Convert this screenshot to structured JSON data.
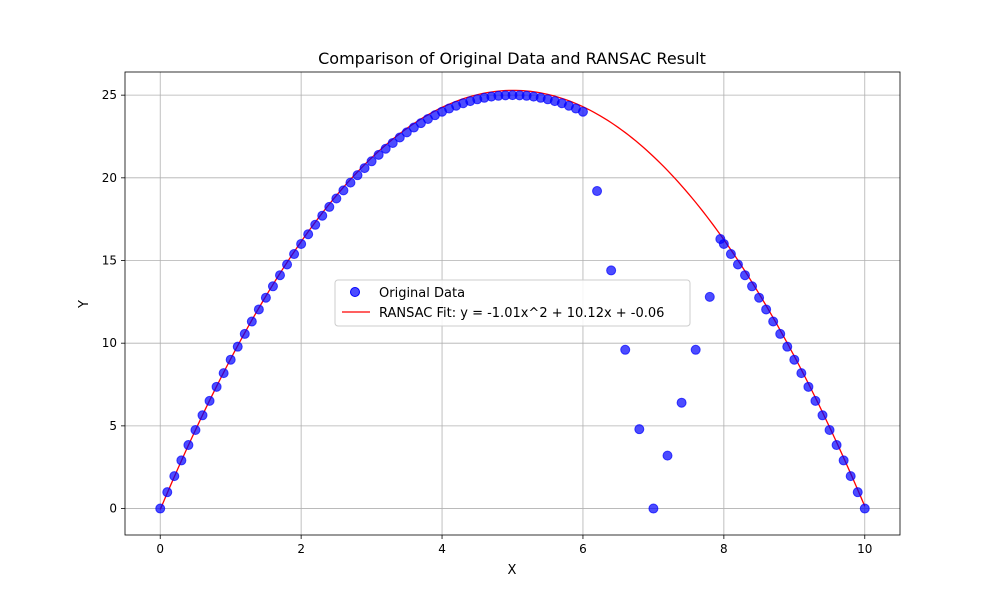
{
  "chart_data": {
    "type": "scatter",
    "title": "Comparison of Original Data and RANSAC Result",
    "xlabel": "X",
    "ylabel": "Y",
    "xlim": [
      -0.5,
      10.5
    ],
    "ylim": [
      -1.6,
      26.4
    ],
    "xticks": [
      0,
      2,
      4,
      6,
      8,
      10
    ],
    "yticks": [
      0,
      5,
      10,
      15,
      20,
      25
    ],
    "grid": true,
    "legend_position": "center",
    "series": [
      {
        "name": "Original Data",
        "kind": "scatter",
        "color": "#0000ff",
        "points": [
          [
            0.0,
            0.0
          ],
          [
            0.1,
            0.99
          ],
          [
            0.2,
            1.96
          ],
          [
            0.3,
            2.91
          ],
          [
            0.4,
            3.84
          ],
          [
            0.5,
            4.75
          ],
          [
            0.6,
            5.64
          ],
          [
            0.7,
            6.51
          ],
          [
            0.8,
            7.36
          ],
          [
            0.9,
            8.19
          ],
          [
            1.0,
            9.0
          ],
          [
            1.1,
            9.79
          ],
          [
            1.2,
            10.56
          ],
          [
            1.3,
            11.31
          ],
          [
            1.4,
            12.04
          ],
          [
            1.5,
            12.75
          ],
          [
            1.6,
            13.44
          ],
          [
            1.7,
            14.11
          ],
          [
            1.8,
            14.76
          ],
          [
            1.9,
            15.39
          ],
          [
            2.0,
            16.0
          ],
          [
            2.1,
            16.59
          ],
          [
            2.2,
            17.16
          ],
          [
            2.3,
            17.71
          ],
          [
            2.4,
            18.24
          ],
          [
            2.5,
            18.75
          ],
          [
            2.6,
            19.24
          ],
          [
            2.7,
            19.71
          ],
          [
            2.8,
            20.16
          ],
          [
            2.9,
            20.59
          ],
          [
            3.0,
            21.0
          ],
          [
            3.1,
            21.39
          ],
          [
            3.2,
            21.76
          ],
          [
            3.3,
            22.11
          ],
          [
            3.4,
            22.44
          ],
          [
            3.5,
            22.75
          ],
          [
            3.6,
            23.04
          ],
          [
            3.7,
            23.31
          ],
          [
            3.8,
            23.56
          ],
          [
            3.9,
            23.79
          ],
          [
            4.0,
            24.0
          ],
          [
            4.1,
            24.19
          ],
          [
            4.2,
            24.36
          ],
          [
            4.3,
            24.51
          ],
          [
            4.4,
            24.64
          ],
          [
            4.5,
            24.75
          ],
          [
            4.6,
            24.84
          ],
          [
            4.7,
            24.91
          ],
          [
            4.8,
            24.96
          ],
          [
            4.9,
            24.99
          ],
          [
            5.0,
            25.0
          ],
          [
            5.1,
            24.99
          ],
          [
            5.2,
            24.96
          ],
          [
            5.3,
            24.91
          ],
          [
            5.4,
            24.84
          ],
          [
            5.5,
            24.75
          ],
          [
            5.6,
            24.64
          ],
          [
            5.7,
            24.51
          ],
          [
            5.8,
            24.36
          ],
          [
            5.9,
            24.19
          ],
          [
            6.0,
            24.0
          ],
          [
            6.2,
            19.2
          ],
          [
            6.4,
            14.4
          ],
          [
            6.6,
            9.6
          ],
          [
            6.8,
            4.8
          ],
          [
            7.0,
            0.0
          ],
          [
            7.2,
            3.2
          ],
          [
            7.4,
            6.4
          ],
          [
            7.6,
            9.6
          ],
          [
            7.8,
            12.8
          ],
          [
            7.95,
            16.3
          ],
          [
            8.0,
            16.0
          ],
          [
            8.1,
            15.39
          ],
          [
            8.2,
            14.76
          ],
          [
            8.3,
            14.11
          ],
          [
            8.4,
            13.44
          ],
          [
            8.5,
            12.75
          ],
          [
            8.6,
            12.04
          ],
          [
            8.7,
            11.31
          ],
          [
            8.8,
            10.56
          ],
          [
            8.9,
            9.79
          ],
          [
            9.0,
            9.0
          ],
          [
            9.1,
            8.19
          ],
          [
            9.2,
            7.36
          ],
          [
            9.3,
            6.51
          ],
          [
            9.4,
            5.64
          ],
          [
            9.5,
            4.75
          ],
          [
            9.6,
            3.84
          ],
          [
            9.7,
            2.91
          ],
          [
            9.8,
            1.96
          ],
          [
            9.9,
            0.99
          ],
          [
            10.0,
            0.0
          ]
        ]
      },
      {
        "name": "RANSAC Fit: y = -1.01x^2 + 10.12x + -0.06",
        "kind": "line",
        "color": "#ff0000",
        "coefficients": [
          -1.01,
          10.12,
          -0.06
        ],
        "x_range": [
          0,
          10
        ]
      }
    ]
  }
}
